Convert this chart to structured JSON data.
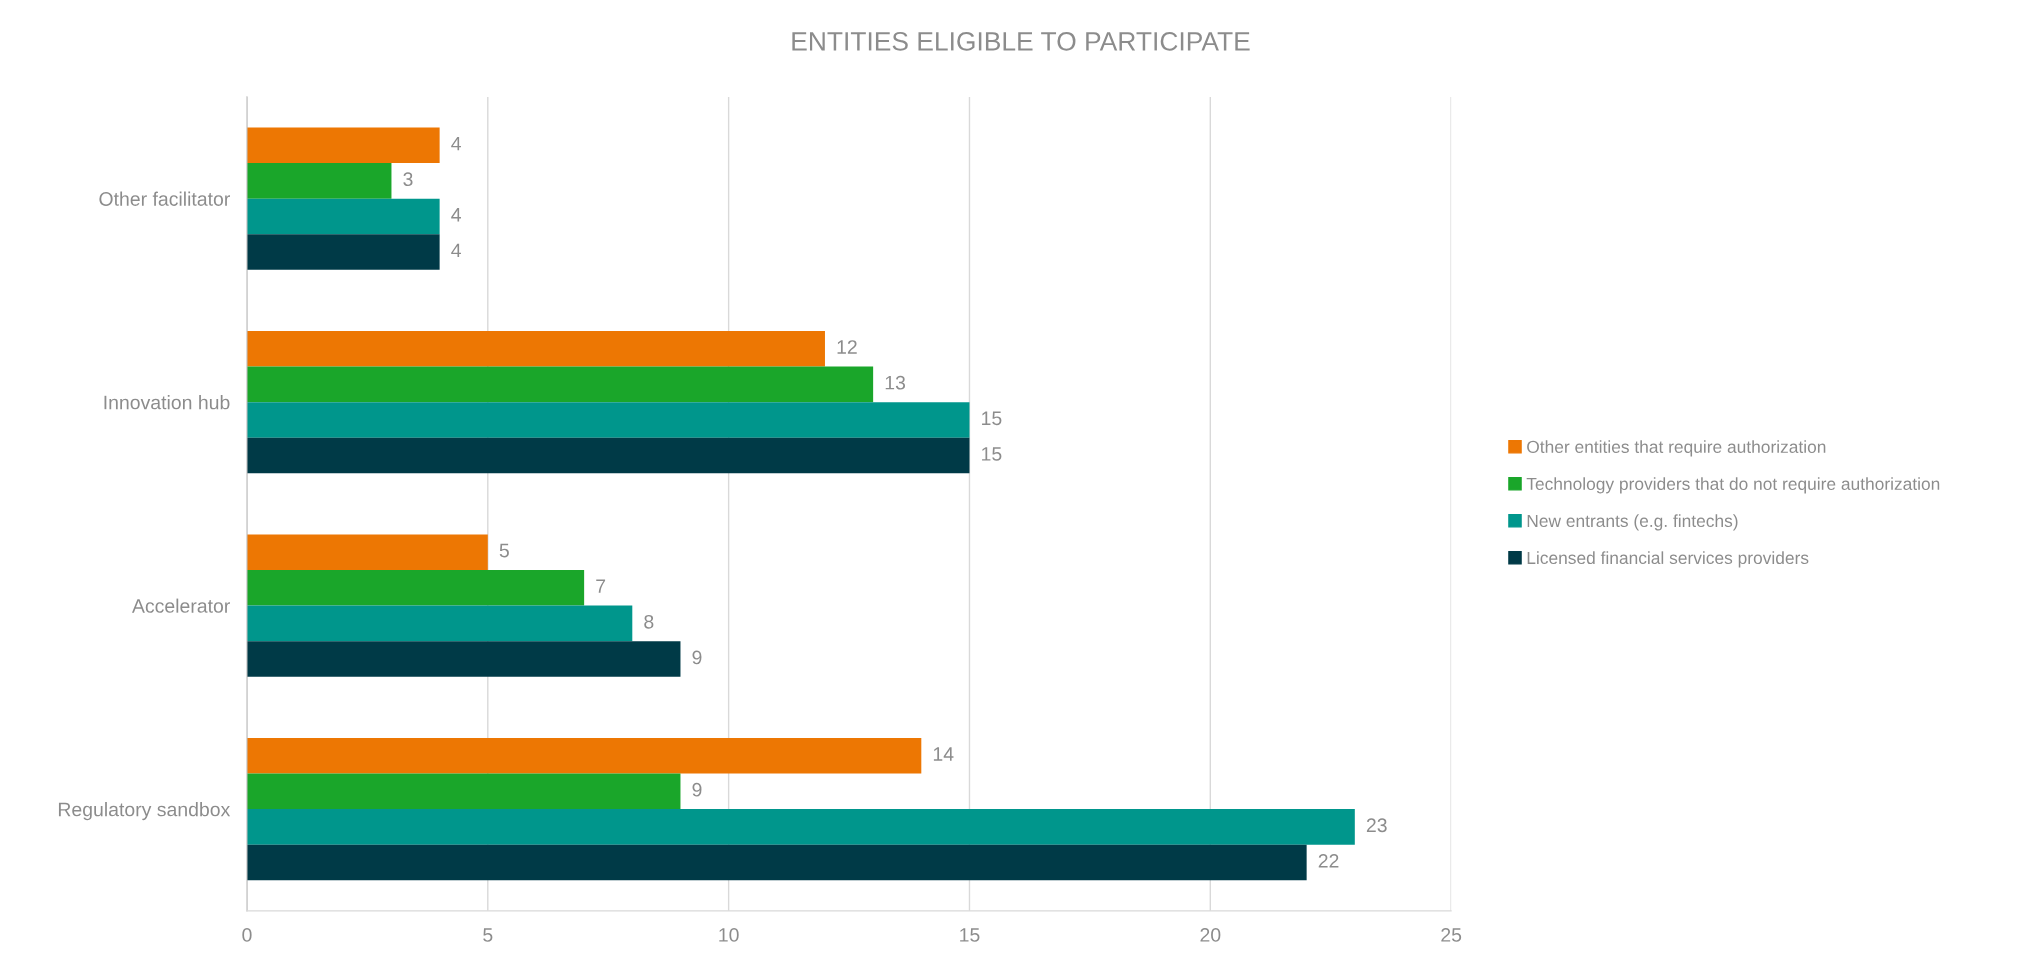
{
  "chart_data": {
    "type": "bar",
    "orientation": "horizontal",
    "title": "ENTITIES ELIGIBLE TO PARTICIPATE",
    "categories": [
      "Other facilitator",
      "Innovation hub",
      "Accelerator",
      "Regulatory sandbox"
    ],
    "series": [
      {
        "name": "Other entities that require authorization",
        "color": "#ed7703",
        "values": [
          4,
          12,
          5,
          14
        ]
      },
      {
        "name": "Technology providers that do not require authorization",
        "color": "#1aa62a",
        "values": [
          3,
          13,
          7,
          9
        ]
      },
      {
        "name": "New entrants (e.g. fintechs)",
        "color": "#00968c",
        "values": [
          4,
          15,
          8,
          23
        ]
      },
      {
        "name": "Licensed financial services providers",
        "color": "#003a47",
        "values": [
          4,
          15,
          9,
          22
        ]
      }
    ],
    "xlim": [
      0,
      25
    ],
    "xticks": [
      0,
      5,
      10,
      15,
      20,
      25
    ],
    "grid": "x",
    "legend": "right",
    "data_labels": true
  }
}
